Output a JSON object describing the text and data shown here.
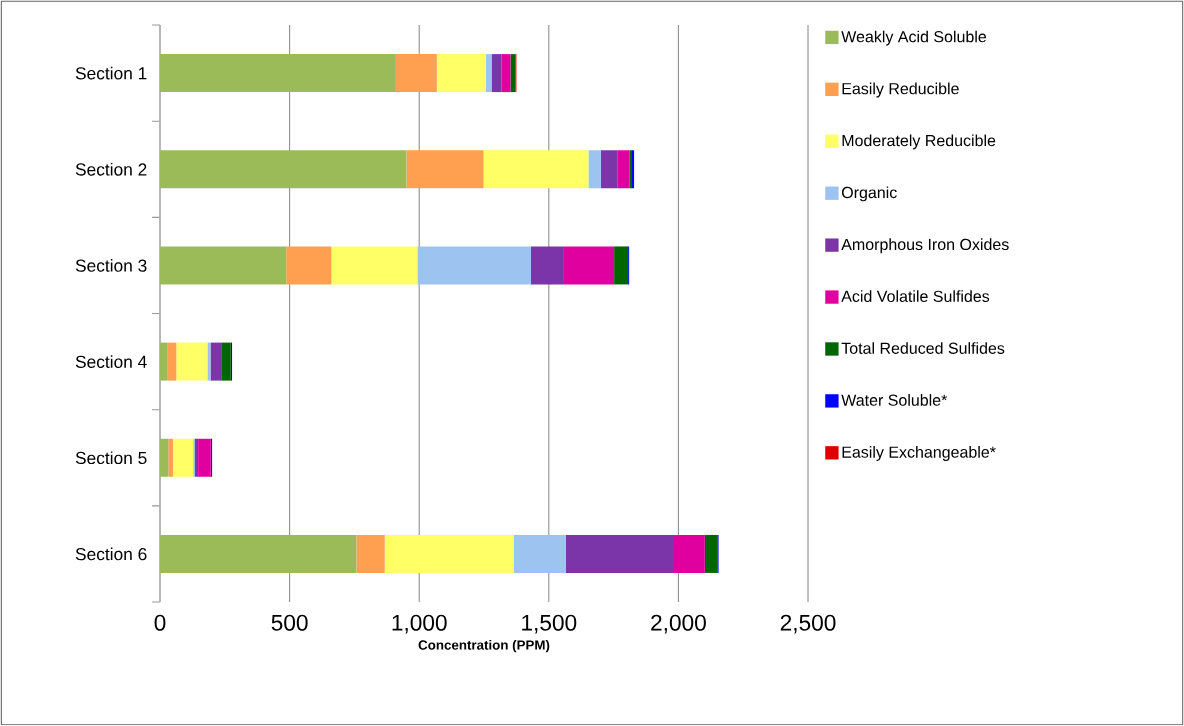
{
  "chart_data": {
    "type": "bar",
    "orientation": "horizontal",
    "stacked": true,
    "xlabel": "Concentration (PPM)",
    "categories": [
      "Section 1",
      "Section 2",
      "Section 3",
      "Section 4",
      "Section 5",
      "Section 6"
    ],
    "series": [
      {
        "name": "Weakly Acid Soluble",
        "color": "#9bbb59",
        "values": [
          910,
          951,
          487,
          30,
          32,
          758
        ]
      },
      {
        "name": "Easily Reducible",
        "color": "#ffa050",
        "values": [
          158,
          297,
          174,
          33,
          18,
          109
        ]
      },
      {
        "name": "Moderately Reducible",
        "color": "#ffff66",
        "values": [
          189,
          405,
          332,
          120,
          78,
          498
        ]
      },
      {
        "name": "Organic",
        "color": "#9dc3f0",
        "values": [
          22,
          48,
          438,
          12,
          7,
          200
        ]
      },
      {
        "name": "Amorphous Iron Oxides",
        "color": "#7b35a8",
        "values": [
          38,
          63,
          124,
          44,
          12,
          418
        ]
      },
      {
        "name": "Acid Volatile Sulfides",
        "color": "#e000a0",
        "values": [
          35,
          47,
          197,
          0,
          49,
          119
        ]
      },
      {
        "name": "Total Reduced Sulfides",
        "color": "#006600",
        "values": [
          19,
          10,
          54,
          34,
          0,
          48
        ]
      },
      {
        "name": "Water Soluble*",
        "color": "#0000ff",
        "values": [
          2,
          8,
          4,
          5,
          5,
          5
        ]
      },
      {
        "name": "Easily Exchangeable*",
        "color": "#dd0000",
        "values": [
          2,
          0,
          0,
          0,
          0,
          0
        ]
      }
    ],
    "xlim": [
      0,
      2500
    ],
    "xticks": [
      0,
      {
        "value": 500,
        "label": "500"
      },
      {
        "value": 1000,
        "label": "1,000"
      },
      {
        "value": 1500,
        "label": "1,500"
      },
      {
        "value": 2000,
        "label": "2,000"
      },
      {
        "value": 2500,
        "label": "2,500"
      }
    ],
    "grid": "x",
    "legend": "right"
  }
}
